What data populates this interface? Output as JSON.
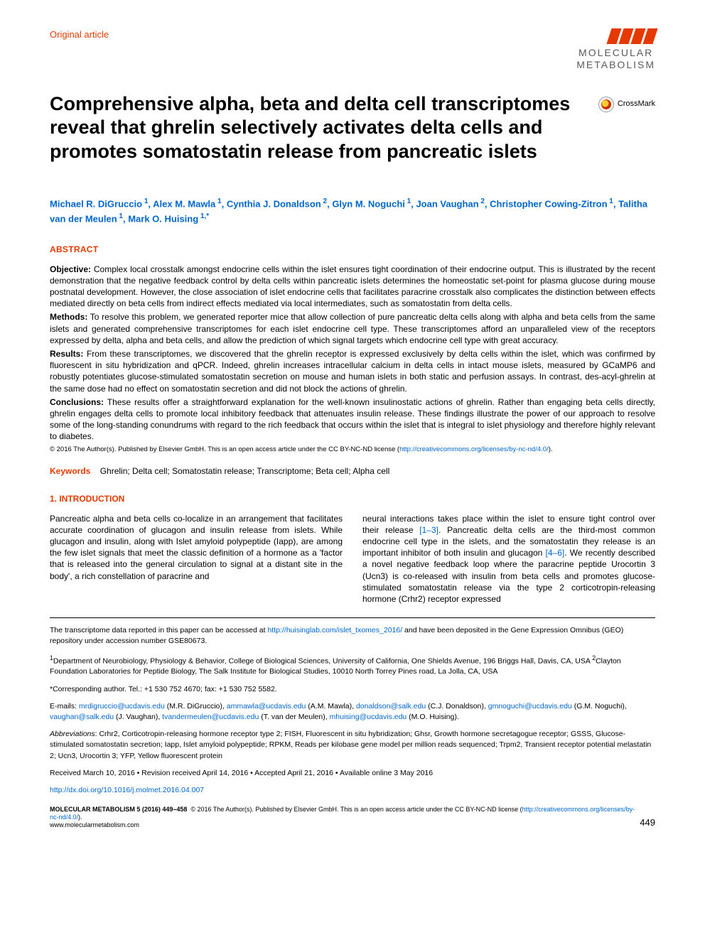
{
  "header": {
    "article_type": "Original article",
    "logo_line1": "MOLECULAR",
    "logo_line2": "METABOLISM",
    "crossmark_label": "CrossMark"
  },
  "title": "Comprehensive alpha, beta and delta cell transcriptomes reveal that ghrelin selectively activates delta cells and promotes somatostatin release from pancreatic islets",
  "authors": [
    {
      "name": "Michael R. DiGruccio",
      "aff": "1"
    },
    {
      "name": "Alex M. Mawla",
      "aff": "1"
    },
    {
      "name": "Cynthia J. Donaldson",
      "aff": "2"
    },
    {
      "name": "Glyn M. Noguchi",
      "aff": "1"
    },
    {
      "name": "Joan Vaughan",
      "aff": "2"
    },
    {
      "name": "Christopher Cowing-Zitron",
      "aff": "1"
    },
    {
      "name": "Talitha van der Meulen",
      "aff": "1"
    },
    {
      "name": "Mark O. Huising",
      "aff": "1,*"
    }
  ],
  "abstract": {
    "head": "ABSTRACT",
    "objective_label": "Objective:",
    "objective": "Complex local crosstalk amongst endocrine cells within the islet ensures tight coordination of their endocrine output. This is illustrated by the recent demonstration that the negative feedback control by delta cells within pancreatic islets determines the homeostatic set-point for plasma glucose during mouse postnatal development. However, the close association of islet endocrine cells that facilitates paracrine crosstalk also complicates the distinction between effects mediated directly on beta cells from indirect effects mediated via local intermediates, such as somatostatin from delta cells.",
    "methods_label": "Methods:",
    "methods": "To resolve this problem, we generated reporter mice that allow collection of pure pancreatic delta cells along with alpha and beta cells from the same islets and generated comprehensive transcriptomes for each islet endocrine cell type. These transcriptomes afford an unparalleled view of the receptors expressed by delta, alpha and beta cells, and allow the prediction of which signal targets which endocrine cell type with great accuracy.",
    "results_label": "Results:",
    "results": "From these transcriptomes, we discovered that the ghrelin receptor is expressed exclusively by delta cells within the islet, which was confirmed by fluorescent in situ hybridization and qPCR. Indeed, ghrelin increases intracellular calcium in delta cells in intact mouse islets, measured by GCaMP6 and robustly potentiates glucose-stimulated somatostatin secretion on mouse and human islets in both static and perfusion assays. In contrast, des-acyl-ghrelin at the same dose had no effect on somatostatin secretion and did not block the actions of ghrelin.",
    "conclusions_label": "Conclusions:",
    "conclusions": "These results offer a straightforward explanation for the well-known insulinostatic actions of ghrelin. Rather than engaging beta cells directly, ghrelin engages delta cells to promote local inhibitory feedback that attenuates insulin release. These findings illustrate the power of our approach to resolve some of the long-standing conundrums with regard to the rich feedback that occurs within the islet that is integral to islet physiology and therefore highly relevant to diabetes.",
    "copyright_prefix": "© 2016 The Author(s). Published by Elsevier GmbH. This is an open access article under the CC BY-NC-ND license (",
    "copyright_url": "http://creativecommons.org/licenses/by-nc-nd/4.0/",
    "copyright_suffix": ")."
  },
  "keywords": {
    "label": "Keywords",
    "text": "Ghrelin; Delta cell; Somatostatin release; Transcriptome; Beta cell; Alpha cell"
  },
  "intro": {
    "head": "1.   INTRODUCTION",
    "col1": "Pancreatic alpha and beta cells co-localize in an arrangement that facilitates accurate coordination of glucagon and insulin release from islets. While glucagon and insulin, along with Islet amyloid polypeptide (Iapp), are among the few islet signals that meet the classic definition of a hormone as a 'factor that is released into the general circulation to signal at a distant site in the body', a rich constellation of paracrine and",
    "col2a": "neural interactions takes place within the islet to ensure tight control over their release ",
    "ref1": "[1–3]",
    "col2b": ". Pancreatic delta cells are the third-most common endocrine cell type in the islets, and the somatostatin they release is an important inhibitor of both insulin and glucagon ",
    "ref2": "[4–6]",
    "col2c": ". We recently described a novel negative feedback loop where the paracrine peptide Urocortin 3 (Ucn3) is co-released with insulin from beta cells and promotes glucose-stimulated somatostatin release via the type 2 corticotropin-releasing hormone (Crhr2) receptor expressed"
  },
  "footnotes": {
    "data_access_a": "The transcriptome data reported in this paper can be accessed at ",
    "data_access_url": "http://huisinglab.com/islet_txomes_2016/",
    "data_access_b": " and have been deposited in the Gene Expression Omnibus (GEO) repository under accession number GSE80673.",
    "aff1": "Department of Neurobiology, Physiology & Behavior, College of Biological Sciences, University of California, One Shields Avenue, 196 Briggs Hall, Davis, CA, USA ",
    "aff2": "Clayton Foundation Laboratories for Peptide Biology, The Salk Institute for Biological Studies, 10010 North Torrey Pines road, La Jolla, CA, USA",
    "corresponding": "*Corresponding author. Tel.: +1 530 752 4670; fax: +1 530 752 5582.",
    "emails_label": "E-mails: ",
    "emails": [
      {
        "addr": "mrdigruccio@ucdavis.edu",
        "who": " (M.R. DiGruccio), "
      },
      {
        "addr": "ammawla@ucdavis.edu",
        "who": " (A.M. Mawla), "
      },
      {
        "addr": "donaldson@salk.edu",
        "who": " (C.J. Donaldson), "
      },
      {
        "addr": "gmnoguchi@ucdavis.edu",
        "who": " (G.M. Noguchi), "
      },
      {
        "addr": "vaughan@salk.edu",
        "who": " (J. Vaughan), "
      },
      {
        "addr": "tvandermeulen@ucdavis.edu",
        "who": " (T. van der Meulen), "
      },
      {
        "addr": "mhuising@ucdavis.edu",
        "who": " (M.O. Huising)."
      }
    ],
    "abbrev_label": "Abbreviations",
    "abbrev": ": Crhr2, Corticotropin-releasing hormone receptor type 2; FISH, Fluorescent in situ hybridization; Ghsr, Growth hormone secretagogue receptor; GSSS, Glucose-stimulated somatostatin secretion; Iapp, Islet amyloid polypeptide; RPKM, Reads per kilobase gene model per million reads sequenced; Trpm2, Transient receptor potential melastatin 2; Ucn3, Urocortin 3; YFP, Yellow fluorescent protein",
    "dates": "Received March 10, 2016 • Revision received April 14, 2016 • Accepted April 21, 2016 • Available online 3 May 2016",
    "doi": "http://dx.doi.org/10.1016/j.molmet.2016.04.007"
  },
  "footer": {
    "journal": "MOLECULAR METABOLISM 5 (2016) 449–458",
    "license_a": "© 2016 The Author(s). Published by Elsevier GmbH. This is an open access article under the CC BY-NC-ND license (",
    "license_url": "http://creativecommons.org/licenses/by-nc-nd/4.0/",
    "license_b": ").",
    "site": "www.molecularmetabolism.com",
    "page": "449"
  },
  "colors": {
    "accent": "#e63900",
    "link": "#0066cc",
    "logo_text": "#5a5a5a"
  }
}
